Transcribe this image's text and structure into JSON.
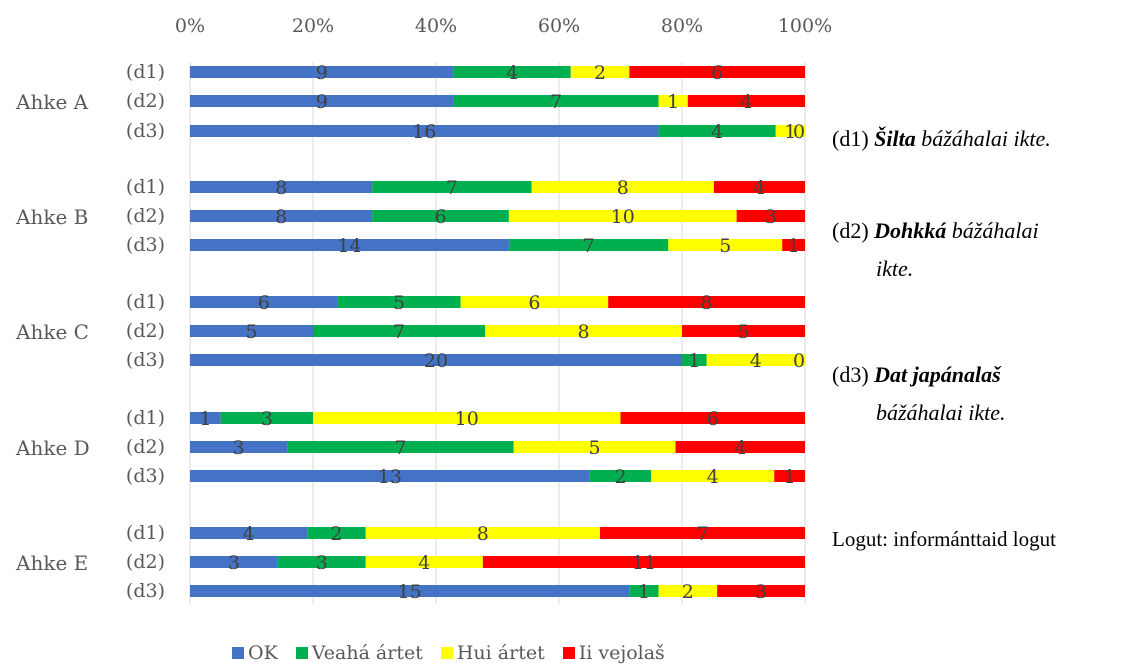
{
  "chart_data": {
    "type": "stacked-bar-100",
    "orientation": "horizontal",
    "x_ticks": [
      "0%",
      "20%",
      "40%",
      "60%",
      "80%",
      "100%"
    ],
    "xlim": [
      0,
      100
    ],
    "grid": true,
    "legend_position": "bottom",
    "series": [
      {
        "name": "OK",
        "color": "#4472C4"
      },
      {
        "name": "Veahá ártet",
        "color": "#00B050"
      },
      {
        "name": "Hui ártet",
        "color": "#FFFF00"
      },
      {
        "name": "Ii vejolaš",
        "color": "#FF0000"
      }
    ],
    "groups": [
      {
        "label": "Ahke A",
        "rows": [
          {
            "label": "(d1)",
            "values": [
              9,
              4,
              2,
              6
            ]
          },
          {
            "label": "(d2)",
            "values": [
              9,
              7,
              1,
              4
            ]
          },
          {
            "label": "(d3)",
            "values": [
              16,
              4,
              1,
              0
            ]
          }
        ]
      },
      {
        "label": "Ahke B",
        "rows": [
          {
            "label": "(d1)",
            "values": [
              8,
              7,
              8,
              4
            ]
          },
          {
            "label": "(d2)",
            "values": [
              8,
              6,
              10,
              3
            ]
          },
          {
            "label": "(d3)",
            "values": [
              14,
              7,
              5,
              1
            ]
          }
        ]
      },
      {
        "label": "Ahke C",
        "rows": [
          {
            "label": "(d1)",
            "values": [
              6,
              5,
              6,
              8
            ]
          },
          {
            "label": "(d2)",
            "values": [
              5,
              7,
              8,
              5
            ]
          },
          {
            "label": "(d3)",
            "values": [
              20,
              1,
              4,
              0
            ]
          }
        ]
      },
      {
        "label": "Ahke D",
        "rows": [
          {
            "label": "(d1)",
            "values": [
              1,
              3,
              10,
              6
            ]
          },
          {
            "label": "(d2)",
            "values": [
              3,
              7,
              5,
              4
            ]
          },
          {
            "label": "(d3)",
            "values": [
              13,
              2,
              4,
              1
            ]
          }
        ]
      },
      {
        "label": "Ahke E",
        "rows": [
          {
            "label": "(d1)",
            "values": [
              4,
              2,
              8,
              7
            ]
          },
          {
            "label": "(d2)",
            "values": [
              3,
              3,
              4,
              11
            ]
          },
          {
            "label": "(d3)",
            "values": [
              15,
              1,
              2,
              3
            ]
          }
        ]
      }
    ]
  },
  "notes": {
    "d1": {
      "prefix": "(d1) ",
      "bold": "Šilta",
      "rest": " bážáhalai ikte."
    },
    "d2": {
      "prefix": "(d2) ",
      "bold": "Dohkká",
      "rest": " bážáhalai",
      "cont": "ikte."
    },
    "d3": {
      "prefix": "(d3) ",
      "bold": "Dat japánalaš",
      "cont": "bážáhalai ikte."
    },
    "source": "Logut: informánttaid logut"
  }
}
